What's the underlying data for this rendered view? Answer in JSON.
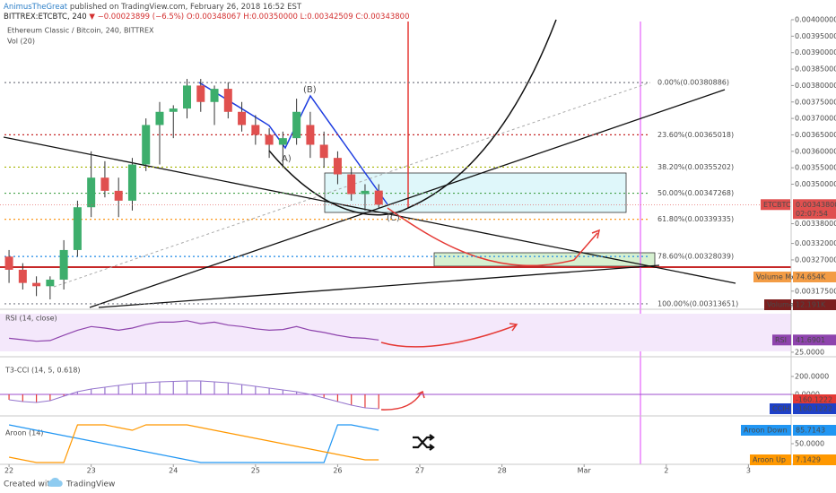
{
  "header": {
    "author": "AnimusTheGreat",
    "published": "published on TradingView.com, February 26, 2018 16:52 EST",
    "symbol": "BITTREX:ETCBTC, 240",
    "change": "▼ −0.00023899 (−6.5%)",
    "ohlc": "O:0.00348067 H:0.00350000 L:0.00342509 C:0.00343800"
  },
  "footer": {
    "created": "Created with",
    "brand": "TradingView"
  },
  "chart_data": [
    {
      "type": "candlestick",
      "title": "Ethereum Classic / Bitcoin, 240, BITTREX",
      "subtitle": "Vol (20)",
      "x": [
        22,
        22.1667,
        22.3333,
        22.5,
        22.6667,
        22.8333,
        23,
        23.1667,
        23.3333,
        23.5,
        23.6667,
        23.8333,
        24,
        24.1667,
        24.3333,
        24.5,
        24.6667,
        24.8333,
        25,
        25.1667,
        25.3333,
        25.5,
        25.6667,
        25.8333,
        26,
        26.1667,
        26.3333,
        26.5
      ],
      "open": [
        0.00328,
        0.00324,
        0.0032,
        0.00319,
        0.00321,
        0.0033,
        0.00343,
        0.00352,
        0.00348,
        0.00345,
        0.00356,
        0.00368,
        0.00372,
        0.00373,
        0.0038,
        0.00375,
        0.00379,
        0.00372,
        0.00368,
        0.00365,
        0.00362,
        0.00364,
        0.00368,
        0.00362,
        0.00358,
        0.00353,
        0.00347,
        0.00348067
      ],
      "high": [
        0.0033,
        0.00326,
        0.00322,
        0.00322,
        0.00333,
        0.00345,
        0.0036,
        0.00357,
        0.00352,
        0.00358,
        0.0037,
        0.00375,
        0.00374,
        0.00382,
        0.00382,
        0.0038,
        0.00381,
        0.00375,
        0.00371,
        0.00367,
        0.00366,
        0.00376,
        0.00372,
        0.00366,
        0.0036,
        0.00355,
        0.0035,
        0.0035
      ],
      "low": [
        0.0032,
        0.00318,
        0.00316,
        0.00315,
        0.00318,
        0.00328,
        0.0034,
        0.00346,
        0.0034,
        0.00342,
        0.00354,
        0.00356,
        0.00364,
        0.0037,
        0.00372,
        0.00368,
        0.0037,
        0.00366,
        0.00362,
        0.00358,
        0.00355,
        0.00362,
        0.00358,
        0.00355,
        0.0035,
        0.00345,
        0.00342,
        0.00342509
      ],
      "close": [
        0.00324,
        0.0032,
        0.00319,
        0.00321,
        0.0033,
        0.00343,
        0.00352,
        0.00348,
        0.00345,
        0.00356,
        0.00368,
        0.00372,
        0.00373,
        0.0038,
        0.00375,
        0.00379,
        0.00372,
        0.00368,
        0.00365,
        0.00362,
        0.00364,
        0.00372,
        0.00362,
        0.00358,
        0.00353,
        0.00347,
        0.00348,
        0.003438
      ],
      "up_color": "#3dae6c",
      "down_color": "#e0504f",
      "xlim": [
        21.89,
        31.52
      ],
      "xticks": [
        22,
        23,
        24,
        25,
        26,
        27,
        28,
        {
          "value": 29,
          "label": "Mar"
        },
        {
          "value": 30,
          "label": "2"
        },
        {
          "value": 31,
          "label": "3"
        }
      ],
      "ylim": [
        0.00312,
        0.004
      ],
      "yticks": [
        {
          "value": 0.004,
          "label": "0.00400000"
        },
        {
          "value": 0.00395,
          "label": "0.00395000"
        },
        {
          "value": 0.0039,
          "label": "0.00390000"
        },
        {
          "value": 0.00385,
          "label": "0.00385000"
        },
        {
          "value": 0.0038,
          "label": "0.00380000"
        },
        {
          "value": 0.00375,
          "label": "0.00375000"
        },
        {
          "value": 0.0037,
          "label": "0.00370000"
        },
        {
          "value": 0.00365,
          "label": "0.00365000"
        },
        {
          "value": 0.0036,
          "label": "0.00360000"
        },
        {
          "value": 0.00355,
          "label": "0.00355000"
        },
        {
          "value": 0.0035,
          "label": "0.00350000"
        },
        {
          "value": 0.00338,
          "label": "0.00338000"
        },
        {
          "value": 0.00332,
          "label": "0.00332000"
        },
        {
          "value": 0.00327,
          "label": "0.00327000"
        },
        {
          "value": 0.00322,
          "label": "0.00322000"
        },
        {
          "value": 0.003175,
          "label": "0.00317500"
        }
      ],
      "last_price": {
        "name": "ETCBTC",
        "value": 0.003438,
        "label": "0.00343800",
        "countdown": "02:07:54"
      },
      "fib_levels": [
        {
          "label": "0.00%(0.00380886)",
          "value": 0.00380886,
          "color": "#787b86"
        },
        {
          "label": "23.60%(0.00365018)",
          "value": 0.00365018,
          "color": "#c62828"
        },
        {
          "label": "38.20%(0.00355202)",
          "value": 0.00355202,
          "color": "#a5b400"
        },
        {
          "label": "50.00%(0.00347268)",
          "value": 0.00347268,
          "color": "#43a047"
        },
        {
          "label": "61.80%(0.00339335)",
          "value": 0.00339335,
          "color": "#fb8c00"
        },
        {
          "label": "78.60%(0.00328039)",
          "value": 0.00328039,
          "color": "#1e88e5"
        },
        {
          "label": "100.00%(0.00313651)",
          "value": 0.00313651,
          "color": "#787b86"
        }
      ],
      "annotations": [
        "(B)",
        "(C)",
        "A)"
      ],
      "volume_labels": [
        {
          "name": "Volume MA",
          "label": "74.654K"
        },
        {
          "name": "Volume",
          "label": "12.191K"
        }
      ]
    },
    {
      "type": "line",
      "title": "RSI (14, close)",
      "ylim": [
        20,
        80
      ],
      "yticks": [
        {
          "value": 25,
          "label": "25.0000"
        }
      ],
      "series": [
        {
          "name": "RSI",
          "color": "#8e44ad",
          "values": [
            44,
            42,
            40,
            41,
            48,
            55,
            60,
            58,
            55,
            58,
            63,
            66,
            66,
            68,
            64,
            66,
            62,
            60,
            57,
            55,
            56,
            60,
            55,
            52,
            48,
            45,
            44,
            41.6901
          ]
        }
      ]
    },
    {
      "type": "bar",
      "title": "T3-CCI (14, 5, 0.618)",
      "ylim": [
        -220,
        400
      ],
      "yticks": [
        {
          "value": 200,
          "label": "200.0000"
        },
        {
          "value": 0,
          "label": "0.0000"
        }
      ],
      "series": [
        {
          "name": "CCIH",
          "color": "#9575cd",
          "negative_color": "#e53935",
          "values": [
            -60,
            -80,
            -90,
            -70,
            -20,
            30,
            60,
            80,
            100,
            120,
            130,
            140,
            145,
            150,
            150,
            140,
            130,
            110,
            90,
            70,
            50,
            30,
            0,
            -40,
            -80,
            -120,
            -150,
            -160.1222
          ]
        }
      ]
    },
    {
      "type": "line",
      "title": "Aroon (14)",
      "ylim": [
        0,
        100
      ],
      "yticks": [
        {
          "value": 50,
          "label": "50.0000"
        }
      ],
      "series": [
        {
          "name": "Aroon Down",
          "color": "#2196f3",
          "values": [
            100,
            92.86,
            85.71,
            78.57,
            71.43,
            64.29,
            57.14,
            50,
            42.86,
            35.71,
            28.57,
            21.43,
            14.29,
            7.14,
            0,
            0,
            0,
            0,
            0,
            0,
            0,
            0,
            0,
            0,
            100,
            100,
            92.86,
            85.7143
          ]
        },
        {
          "name": "Aroon Up",
          "color": "#ff9800",
          "values": [
            14.29,
            7.14,
            0,
            0,
            0,
            100,
            100,
            100,
            92.86,
            85.71,
            100,
            100,
            100,
            100,
            92.86,
            85.71,
            78.57,
            71.43,
            64.29,
            57.14,
            50,
            42.86,
            35.71,
            28.57,
            21.43,
            14.29,
            7.14,
            7.1429
          ]
        }
      ]
    }
  ]
}
